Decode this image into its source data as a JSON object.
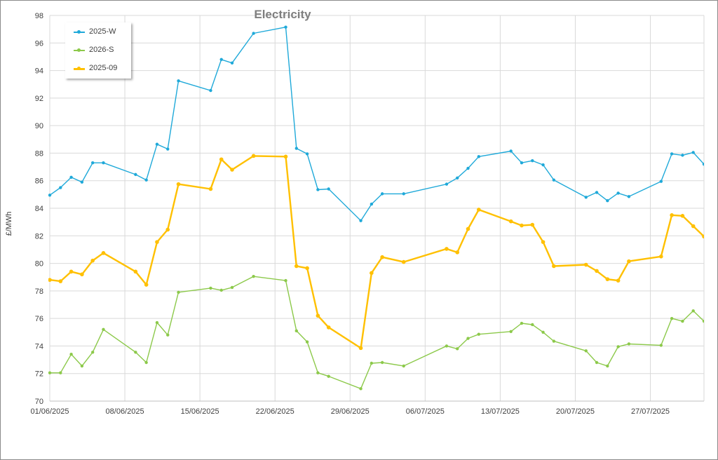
{
  "chart_data": {
    "type": "line",
    "title": "Electricity",
    "ylabel": "£/MWh",
    "xlabel": "",
    "ylim": [
      70,
      98
    ],
    "y_ticks": [
      "70",
      "72",
      "74",
      "76",
      "78",
      "80",
      "82",
      "84",
      "86",
      "88",
      "90",
      "92",
      "94",
      "96",
      "98"
    ],
    "x_range": [
      "01/06/2025",
      "01/08/2025"
    ],
    "x_ticks": [
      "01/06/2025",
      "08/06/2025",
      "15/06/2025",
      "22/06/2025",
      "29/06/2025",
      "06/07/2025",
      "13/07/2025",
      "20/07/2025",
      "27/07/2025"
    ],
    "grid": true,
    "legend_position": "top-left",
    "series": [
      {
        "name": "2025-W",
        "color": "#1fa9d9",
        "line_width": 1.4,
        "points": [
          [
            "01/06/2025",
            84.95
          ],
          [
            "02/06/2025",
            85.5
          ],
          [
            "03/06/2025",
            86.25
          ],
          [
            "04/06/2025",
            85.9
          ],
          [
            "05/06/2025",
            87.3
          ],
          [
            "06/06/2025",
            87.3
          ],
          [
            "09/06/2025",
            86.45
          ],
          [
            "10/06/2025",
            86.05
          ],
          [
            "11/06/2025",
            88.65
          ],
          [
            "12/06/2025",
            88.3
          ],
          [
            "13/06/2025",
            93.25
          ],
          [
            "16/06/2025",
            92.55
          ],
          [
            "17/06/2025",
            94.8
          ],
          [
            "18/06/2025",
            94.55
          ],
          [
            "20/06/2025",
            96.7
          ],
          [
            "23/06/2025",
            97.15
          ],
          [
            "24/06/2025",
            88.35
          ],
          [
            "25/06/2025",
            87.95
          ],
          [
            "26/06/2025",
            85.35
          ],
          [
            "27/06/2025",
            85.4
          ],
          [
            "30/06/2025",
            83.1
          ],
          [
            "01/07/2025",
            84.3
          ],
          [
            "02/07/2025",
            85.05
          ],
          [
            "04/07/2025",
            85.05
          ],
          [
            "08/07/2025",
            85.75
          ],
          [
            "09/07/2025",
            86.2
          ],
          [
            "10/07/2025",
            86.9
          ],
          [
            "11/07/2025",
            87.75
          ],
          [
            "14/07/2025",
            88.15
          ],
          [
            "15/07/2025",
            87.3
          ],
          [
            "16/07/2025",
            87.45
          ],
          [
            "17/07/2025",
            87.15
          ],
          [
            "18/07/2025",
            86.05
          ],
          [
            "21/07/2025",
            84.8
          ],
          [
            "22/07/2025",
            85.15
          ],
          [
            "23/07/2025",
            84.55
          ],
          [
            "24/07/2025",
            85.1
          ],
          [
            "25/07/2025",
            84.85
          ],
          [
            "28/07/2025",
            85.95
          ],
          [
            "29/07/2025",
            87.95
          ],
          [
            "30/07/2025",
            87.85
          ],
          [
            "31/07/2025",
            88.05
          ],
          [
            "01/08/2025",
            87.2
          ]
        ]
      },
      {
        "name": "2026-S",
        "color": "#8cc94a",
        "line_width": 1.4,
        "points": [
          [
            "01/06/2025",
            72.05
          ],
          [
            "02/06/2025",
            72.05
          ],
          [
            "03/06/2025",
            73.4
          ],
          [
            "04/06/2025",
            72.55
          ],
          [
            "05/06/2025",
            73.55
          ],
          [
            "06/06/2025",
            75.2
          ],
          [
            "09/06/2025",
            73.55
          ],
          [
            "10/06/2025",
            72.8
          ],
          [
            "11/06/2025",
            75.7
          ],
          [
            "12/06/2025",
            74.8
          ],
          [
            "13/06/2025",
            77.9
          ],
          [
            "16/06/2025",
            78.2
          ],
          [
            "17/06/2025",
            78.05
          ],
          [
            "18/06/2025",
            78.25
          ],
          [
            "20/06/2025",
            79.05
          ],
          [
            "23/06/2025",
            78.75
          ],
          [
            "24/06/2025",
            75.1
          ],
          [
            "25/06/2025",
            74.3
          ],
          [
            "26/06/2025",
            72.05
          ],
          [
            "27/06/2025",
            71.8
          ],
          [
            "30/06/2025",
            70.9
          ],
          [
            "01/07/2025",
            72.75
          ],
          [
            "02/07/2025",
            72.8
          ],
          [
            "04/07/2025",
            72.55
          ],
          [
            "08/07/2025",
            74.0
          ],
          [
            "09/07/2025",
            73.8
          ],
          [
            "10/07/2025",
            74.55
          ],
          [
            "11/07/2025",
            74.85
          ],
          [
            "14/07/2025",
            75.05
          ],
          [
            "15/07/2025",
            75.65
          ],
          [
            "16/07/2025",
            75.55
          ],
          [
            "17/07/2025",
            75.0
          ],
          [
            "18/07/2025",
            74.35
          ],
          [
            "21/07/2025",
            73.65
          ],
          [
            "22/07/2025",
            72.8
          ],
          [
            "23/07/2025",
            72.55
          ],
          [
            "24/07/2025",
            73.95
          ],
          [
            "25/07/2025",
            74.15
          ],
          [
            "28/07/2025",
            74.05
          ],
          [
            "29/07/2025",
            76.0
          ],
          [
            "30/07/2025",
            75.8
          ],
          [
            "31/07/2025",
            76.55
          ],
          [
            "01/08/2025",
            75.8
          ]
        ]
      },
      {
        "name": "2025-09",
        "color": "#ffc000",
        "line_width": 2.4,
        "points": [
          [
            "01/06/2025",
            78.8
          ],
          [
            "02/06/2025",
            78.7
          ],
          [
            "03/06/2025",
            79.4
          ],
          [
            "04/06/2025",
            79.2
          ],
          [
            "05/06/2025",
            80.2
          ],
          [
            "06/06/2025",
            80.75
          ],
          [
            "09/06/2025",
            79.4
          ],
          [
            "10/06/2025",
            78.45
          ],
          [
            "11/06/2025",
            81.55
          ],
          [
            "12/06/2025",
            82.45
          ],
          [
            "13/06/2025",
            85.75
          ],
          [
            "16/06/2025",
            85.4
          ],
          [
            "17/06/2025",
            87.55
          ],
          [
            "18/06/2025",
            86.8
          ],
          [
            "20/06/2025",
            87.8
          ],
          [
            "23/06/2025",
            87.75
          ],
          [
            "24/06/2025",
            79.8
          ],
          [
            "25/06/2025",
            79.65
          ],
          [
            "26/06/2025",
            76.2
          ],
          [
            "27/06/2025",
            75.35
          ],
          [
            "30/06/2025",
            73.85
          ],
          [
            "01/07/2025",
            79.3
          ],
          [
            "02/07/2025",
            80.45
          ],
          [
            "04/07/2025",
            80.1
          ],
          [
            "08/07/2025",
            81.05
          ],
          [
            "09/07/2025",
            80.8
          ],
          [
            "10/07/2025",
            82.5
          ],
          [
            "11/07/2025",
            83.9
          ],
          [
            "14/07/2025",
            83.05
          ],
          [
            "15/07/2025",
            82.75
          ],
          [
            "16/07/2025",
            82.8
          ],
          [
            "17/07/2025",
            81.55
          ],
          [
            "18/07/2025",
            79.8
          ],
          [
            "21/07/2025",
            79.9
          ],
          [
            "22/07/2025",
            79.45
          ],
          [
            "23/07/2025",
            78.85
          ],
          [
            "24/07/2025",
            78.75
          ],
          [
            "25/07/2025",
            80.15
          ],
          [
            "28/07/2025",
            80.5
          ],
          [
            "29/07/2025",
            83.5
          ],
          [
            "30/07/2025",
            83.45
          ],
          [
            "31/07/2025",
            82.7
          ],
          [
            "01/08/2025",
            81.95
          ]
        ]
      }
    ]
  }
}
